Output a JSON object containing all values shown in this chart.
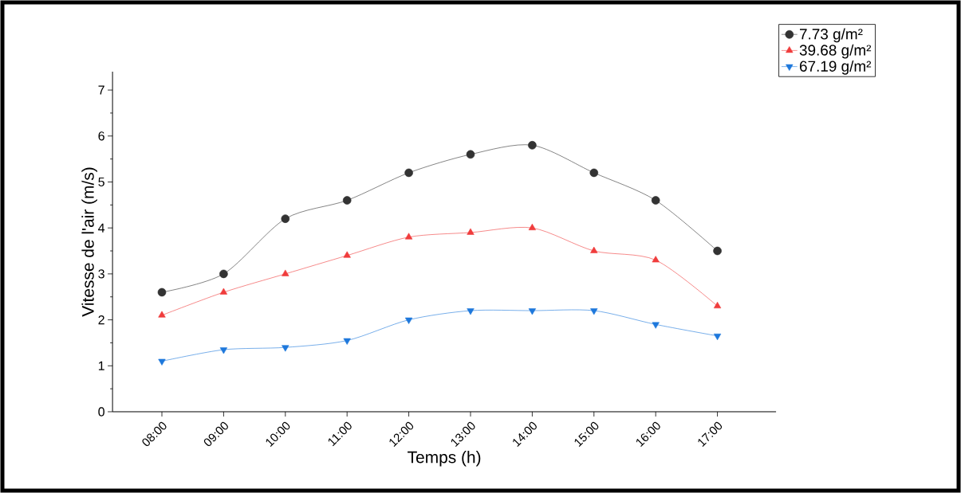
{
  "chart_data": {
    "type": "line",
    "xlabel": "Temps (h)",
    "ylabel": "Vitesse de l'air (m/s)",
    "categories": [
      "08:00",
      "09:00",
      "10:00",
      "11:00",
      "12:00",
      "13:00",
      "14:00",
      "15:00",
      "16:00",
      "17:00"
    ],
    "series": [
      {
        "name": "7.73 g/m²",
        "color": "#333333",
        "marker": "circle",
        "values": [
          2.6,
          3.0,
          4.2,
          4.6,
          5.2,
          5.6,
          5.8,
          5.2,
          4.6,
          3.5
        ]
      },
      {
        "name": "39.68 g/m²",
        "color": "#f03c3c",
        "marker": "triangle",
        "values": [
          2.1,
          2.6,
          3.0,
          3.4,
          3.8,
          3.9,
          4.0,
          3.5,
          3.3,
          2.3
        ]
      },
      {
        "name": "67.19 g/m²",
        "color": "#1e78dc",
        "marker": "triangle_down",
        "values": [
          1.1,
          1.35,
          1.4,
          1.55,
          2.0,
          2.2,
          2.2,
          2.2,
          1.9,
          1.65
        ]
      }
    ],
    "ylim": [
      0,
      7.4
    ],
    "yticks": [
      0,
      1,
      2,
      3,
      4,
      5,
      6,
      7
    ],
    "grid": false,
    "legend": "top right",
    "line_style": "solid"
  }
}
